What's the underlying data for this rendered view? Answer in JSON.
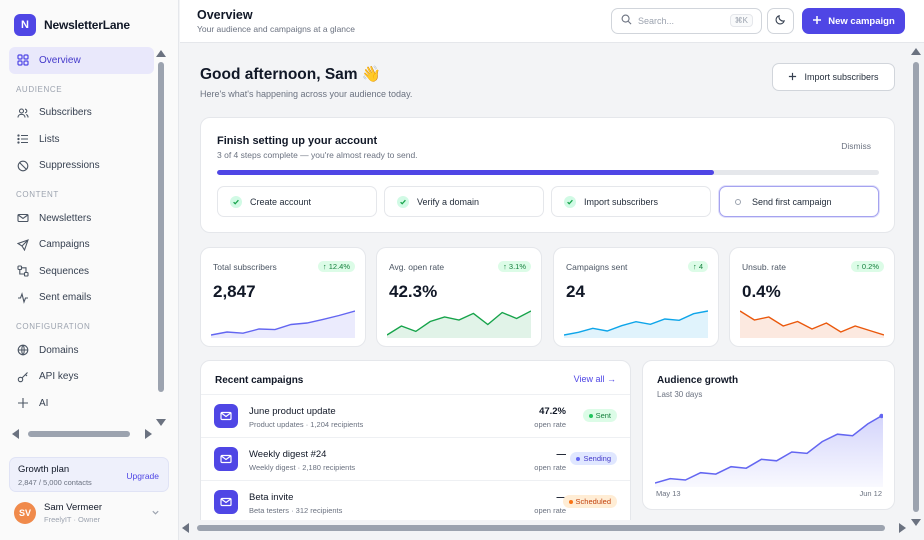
{
  "brand": {
    "logo_letter": "N",
    "name": "NewsletterLane"
  },
  "sidebar": {
    "overview": "Overview",
    "audience_heading": "AUDIENCE",
    "subscribers": "Subscribers",
    "lists": "Lists",
    "suppressions": "Suppressions",
    "content_heading": "CONTENT",
    "newsletters": "Newsletters",
    "campaigns": "Campaigns",
    "sequences": "Sequences",
    "sent_emails": "Sent emails",
    "configuration_heading": "CONFIGURATION",
    "domains": "Domains",
    "api_keys": "API keys",
    "ai": "AI",
    "plan_title": "Growth plan",
    "plan_usage": "2,847 / 5,000 contacts",
    "plan_upgrade": "Upgrade",
    "user_initials": "SV",
    "user_name": "Sam Vermeer",
    "user_org": "FreelyIT · Owner"
  },
  "header": {
    "title": "Overview",
    "subtitle": "Your audience and campaigns at a glance",
    "search_placeholder": "Search...",
    "search_shortcut": "⌘K",
    "new_campaign": "New campaign"
  },
  "main": {
    "greeting": "Good afternoon, Sam 👋",
    "greeting_sub": "Here's what's happening across your audience today.",
    "import_button": "Import subscribers"
  },
  "setup": {
    "title": "Finish setting up your account",
    "subtitle": "3 of 4 steps complete — you're almost ready to send.",
    "dismiss": "Dismiss",
    "progress_fraction": 0.75,
    "steps": [
      {
        "label": "Create account",
        "done": true
      },
      {
        "label": "Verify a domain",
        "done": true
      },
      {
        "label": "Import subscribers",
        "done": true
      },
      {
        "label": "Send first campaign",
        "done": false
      }
    ]
  },
  "stats": [
    {
      "label": "Total subscribers",
      "value": "2,847",
      "delta": "↑ 12.4%",
      "color": "#6366f1",
      "trend": [
        2,
        3,
        2.6,
        4,
        3.8,
        5.5,
        6,
        7.2,
        8.5,
        10
      ]
    },
    {
      "label": "Avg. open rate",
      "value": "42.3%",
      "delta": "↑ 3.1%",
      "color": "#16a34a",
      "trend": [
        2,
        5,
        3.2,
        6.5,
        8,
        7,
        9.2,
        5.5,
        9.5,
        7.5,
        10
      ]
    },
    {
      "label": "Campaigns sent",
      "value": "24",
      "delta": "↑ 4",
      "color": "#0ea5e9",
      "trend": [
        1,
        2,
        3.5,
        2.5,
        4.5,
        6,
        5,
        7,
        6.5,
        9,
        10
      ]
    },
    {
      "label": "Unsub. rate",
      "value": "0.4%",
      "delta": "↑ 0.2%",
      "color": "#ea580c",
      "trend": [
        10,
        7,
        8,
        5,
        6.5,
        4,
        6,
        3,
        5,
        3.5,
        2
      ]
    }
  ],
  "campaigns": {
    "title": "Recent campaigns",
    "view_all": "View all →",
    "rows": [
      {
        "name": "June product update",
        "meta": "Product updates · 1,204 recipients",
        "rate": "47.2%",
        "rate_label": "open rate",
        "status": "Sent",
        "status_bg": "#dcfce7",
        "status_fg": "#15803d",
        "dot": "#22c55e"
      },
      {
        "name": "Weekly digest #24",
        "meta": "Weekly digest · 2,180 recipients",
        "rate": "—",
        "rate_label": "open rate",
        "status": "Sending",
        "status_bg": "#e0e7ff",
        "status_fg": "#4338ca",
        "dot": "#6366f1"
      },
      {
        "name": "Beta invite",
        "meta": "Beta testers · 312 recipients",
        "rate": "—",
        "rate_label": "open rate",
        "status": "Scheduled",
        "status_bg": "#ffedd5",
        "status_fg": "#c2410c",
        "dot": "#f97316"
      }
    ]
  },
  "growth": {
    "title": "Audience growth",
    "subtitle": "Last 30 days",
    "x_start": "May 13",
    "x_end": "Jun 12",
    "color": "#6366f1"
  },
  "chart_data": {
    "type": "area",
    "title": "Audience growth",
    "xlabel": "",
    "ylabel": "",
    "x": [
      "May 13",
      "",
      "",
      "",
      "",
      "",
      "",
      "",
      "",
      "",
      "",
      "",
      "",
      "",
      "",
      "Jun 12"
    ],
    "series": [
      {
        "values": [
          10,
          13,
          12,
          17,
          16,
          21,
          20,
          26,
          25,
          31,
          30,
          38,
          43,
          42,
          50,
          56
        ]
      }
    ]
  }
}
